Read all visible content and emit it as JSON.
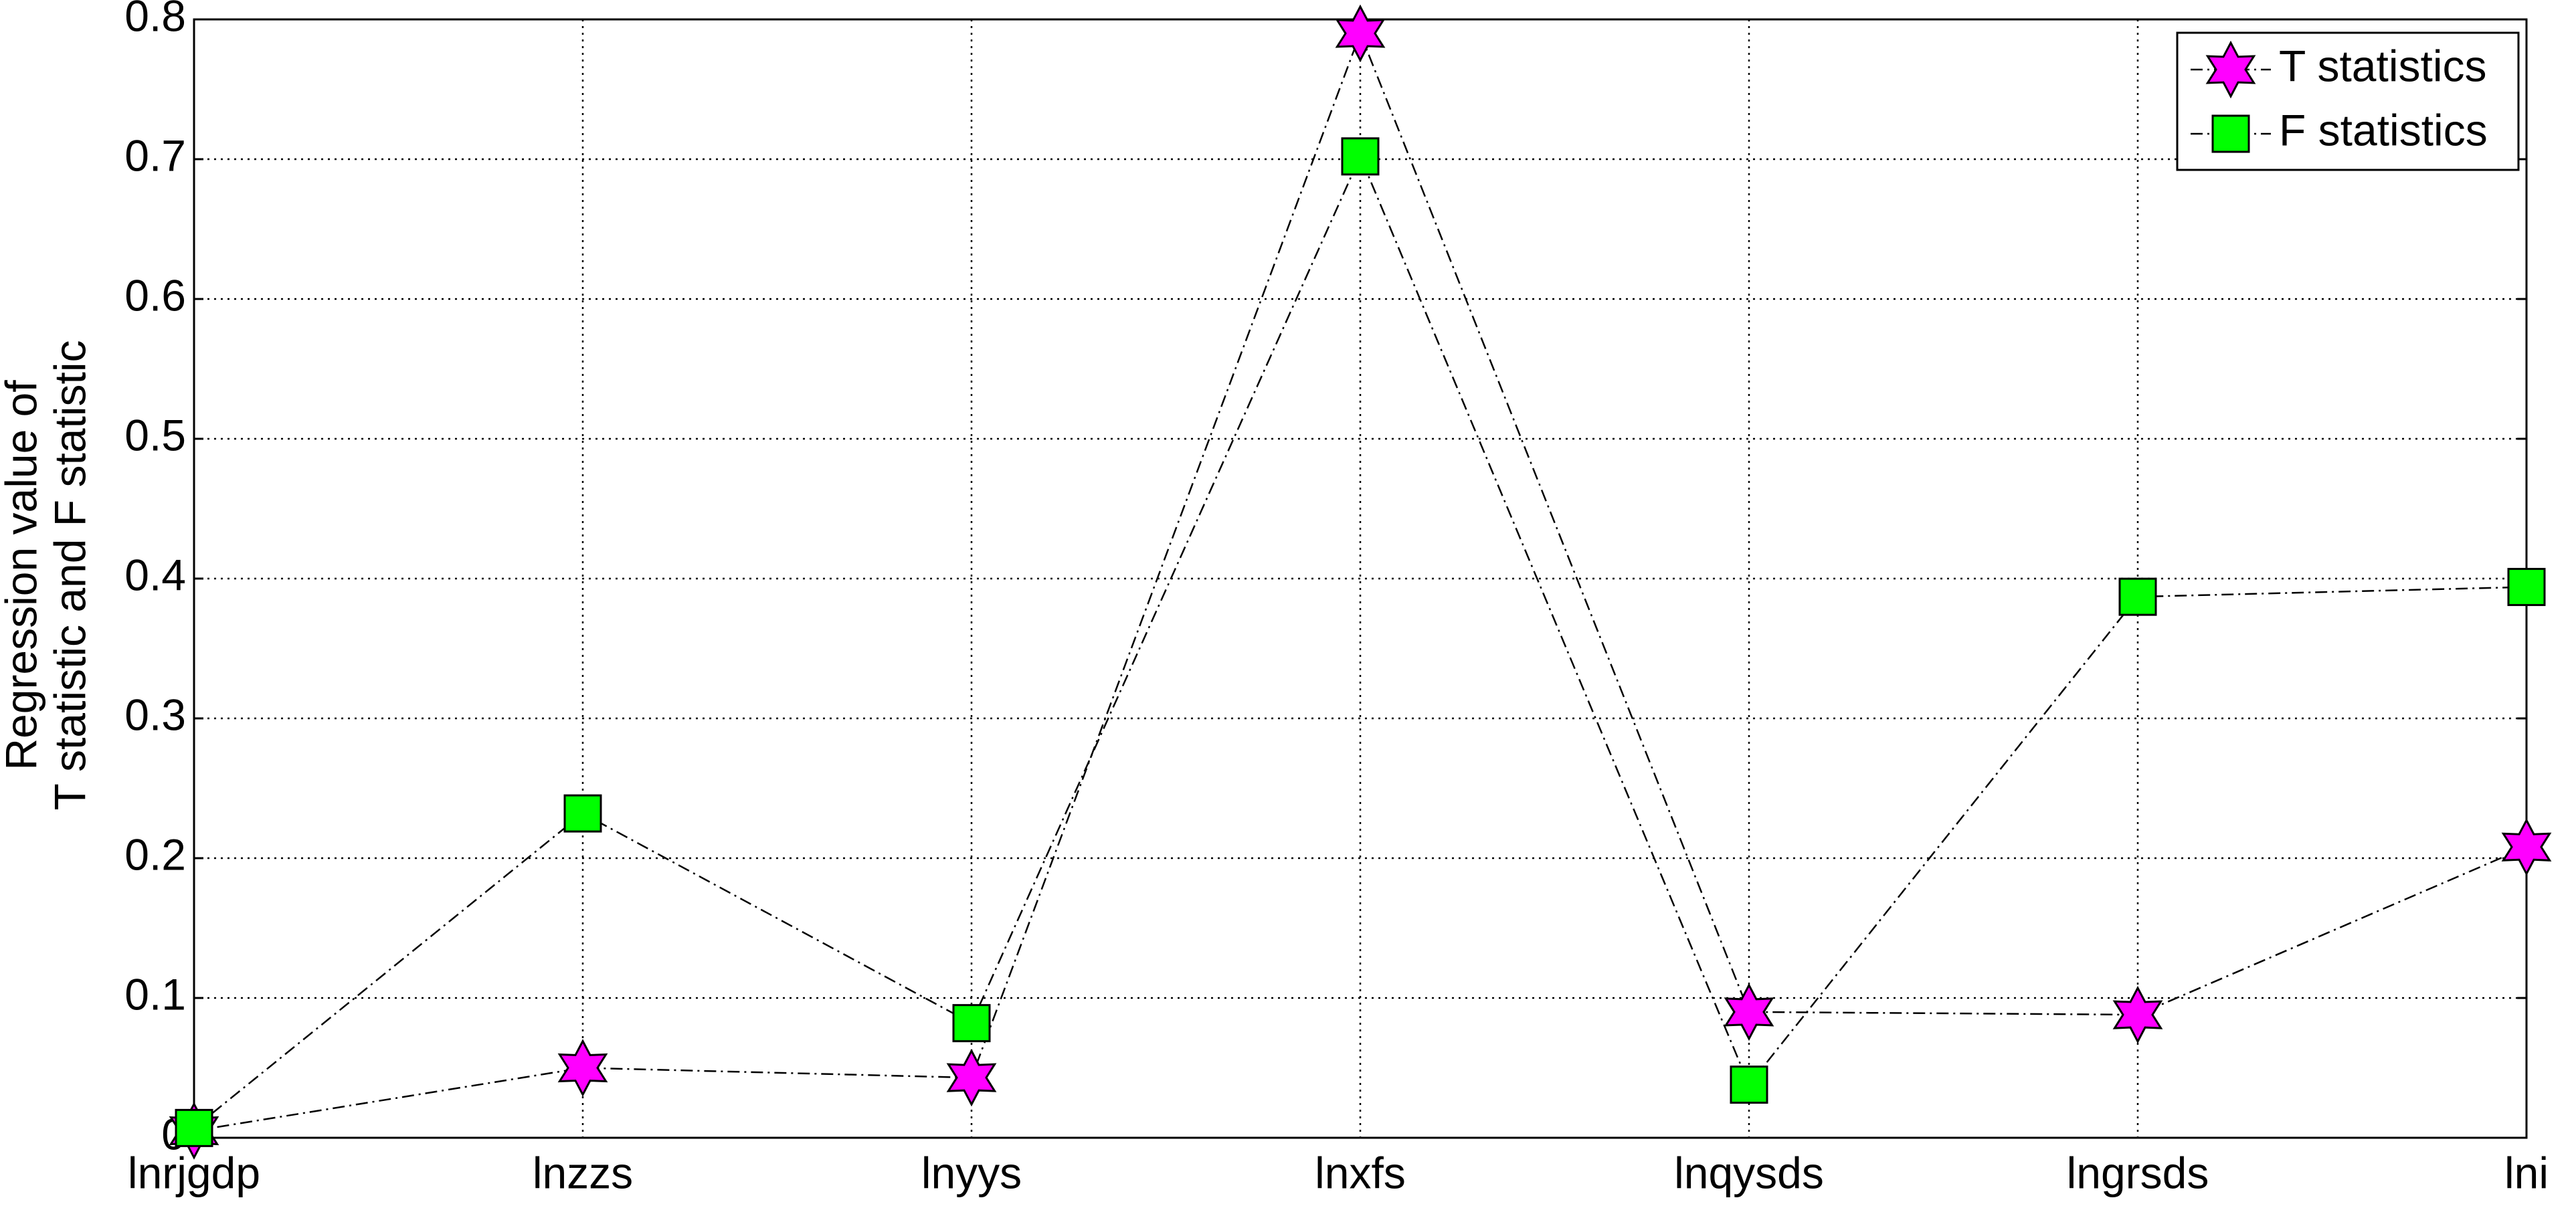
{
  "chart_data": {
    "type": "line",
    "y_label": [
      "Regression value of",
      "T statistic and F statistic"
    ],
    "categories": [
      "lnrjgdp",
      "lnzzs",
      "lnyys",
      "lnxfs",
      "lnqysds",
      "lngrsds",
      "lni"
    ],
    "series": [
      {
        "name": "T statistics",
        "color": "#ff00ff",
        "marker": "hexagram",
        "values": [
          0.005,
          0.05,
          0.043,
          0.79,
          0.09,
          0.088,
          0.208
        ]
      },
      {
        "name": "F statistics",
        "color": "#00ff00",
        "marker": "square",
        "values": [
          0.007,
          0.232,
          0.082,
          0.702,
          0.038,
          0.387,
          0.394
        ]
      }
    ],
    "ylim": [
      0,
      0.8
    ],
    "yticks": [
      0,
      0.1,
      0.2,
      0.3,
      0.4,
      0.5,
      0.6,
      0.7,
      0.8
    ],
    "grid": true,
    "legend": "northeast"
  }
}
